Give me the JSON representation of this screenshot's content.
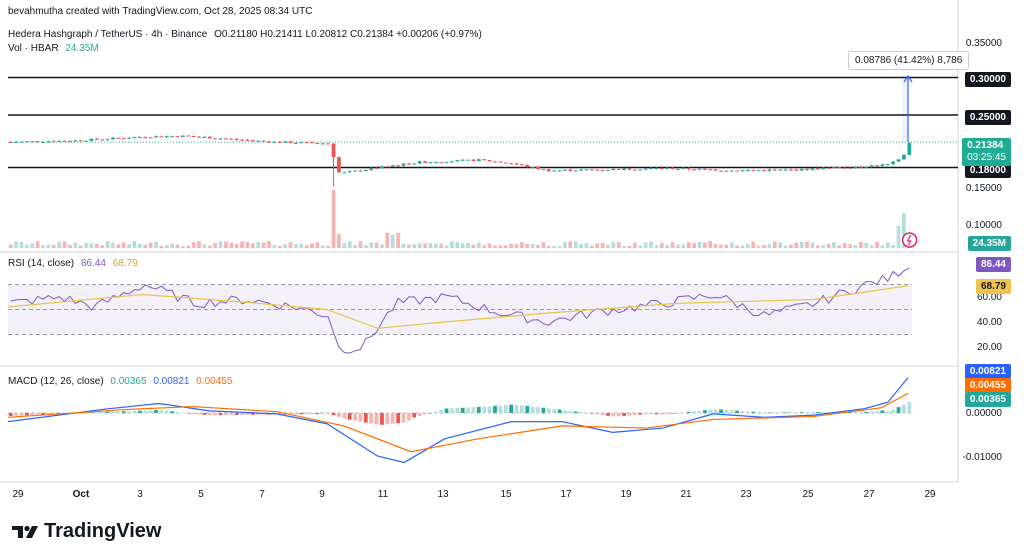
{
  "header": {
    "byline": "bevahmutha created with TradingView.com, Oct 28, 2025 08:34 UTC",
    "symbol": "Hedera Hashgraph / TetherUS · 4h · Binance",
    "ohlc": "O0.21180  H0.21411  L0.20812  C0.21384  +0.00206 (+0.97%)",
    "vol_label": "Vol · HBAR",
    "vol_value": "24.35M"
  },
  "colors": {
    "up": "#26a69a",
    "down": "#ef5350",
    "up_light": "#b2dfdb",
    "down_light": "#f7b4b3",
    "rsi": "#7e57c2",
    "rsi_ma": "#e8c34a",
    "macd": "#2962ff",
    "signal": "#ff6d00",
    "level_line": "#131722",
    "last_price": "#22ab94",
    "measure": "#2962ff"
  },
  "price_axis": {
    "ticks": [
      "0.35000",
      "0.15000",
      "0.10000"
    ]
  },
  "price_levels": [
    "0.30000",
    "0.25000",
    "0.18000"
  ],
  "last_price": {
    "value": "0.21384",
    "countdown": "03:25:45"
  },
  "volume_badge": "24.35M",
  "measure": {
    "text": "0.08786 (41.42%) 8,786"
  },
  "rsi": {
    "label": "RSI (14, close)",
    "value": "86.44",
    "ma": "68.79",
    "ticks": [
      "40.00",
      "20.00",
      "60.00"
    ],
    "badge_value": "86.44",
    "badge_ma": "68.79"
  },
  "macd": {
    "label": "MACD (12, 26, close)",
    "hist": "0.00365",
    "macd": "0.00821",
    "signal": "0.00455",
    "ticks": [
      "0.00000",
      "-0.01000"
    ],
    "badge_macd": "0.00821",
    "badge_signal": "0.00455",
    "badge_hist": "0.00365"
  },
  "time_axis": [
    "29",
    "Oct",
    "3",
    "5",
    "7",
    "9",
    "11",
    "13",
    "15",
    "17",
    "19",
    "21",
    "23",
    "25",
    "27",
    "29"
  ],
  "brand": "TradingView",
  "chart_data": {
    "type": "candlestick",
    "title": "Hedera Hashgraph / TetherUS · 4h · Binance",
    "x_dates": [
      "Sep 29",
      "Oct 1",
      "Oct 3",
      "Oct 5",
      "Oct 7",
      "Oct 9",
      "Oct 11",
      "Oct 13",
      "Oct 15",
      "Oct 17",
      "Oct 19",
      "Oct 21",
      "Oct 23",
      "Oct 25",
      "Oct 27",
      "Oct 28"
    ],
    "close_approx": [
      0.214,
      0.216,
      0.221,
      0.218,
      0.222,
      0.214,
      0.172,
      0.186,
      0.19,
      0.175,
      0.177,
      0.179,
      0.176,
      0.177,
      0.183,
      0.2138
    ],
    "horizontal_levels": [
      0.3,
      0.25,
      0.18
    ],
    "ylim": [
      0.09,
      0.36
    ],
    "volume_last": "24.35M",
    "measure_move": "0.08786 (41.42%)",
    "rsi": {
      "period": 14,
      "last": 86.44,
      "ma_last": 68.79,
      "ylim": [
        10,
        95
      ]
    },
    "macd": {
      "fast": 12,
      "slow": 26,
      "macd_last": 0.00821,
      "signal_last": 0.00455,
      "hist_last": 0.00365,
      "min": -0.0115
    }
  }
}
